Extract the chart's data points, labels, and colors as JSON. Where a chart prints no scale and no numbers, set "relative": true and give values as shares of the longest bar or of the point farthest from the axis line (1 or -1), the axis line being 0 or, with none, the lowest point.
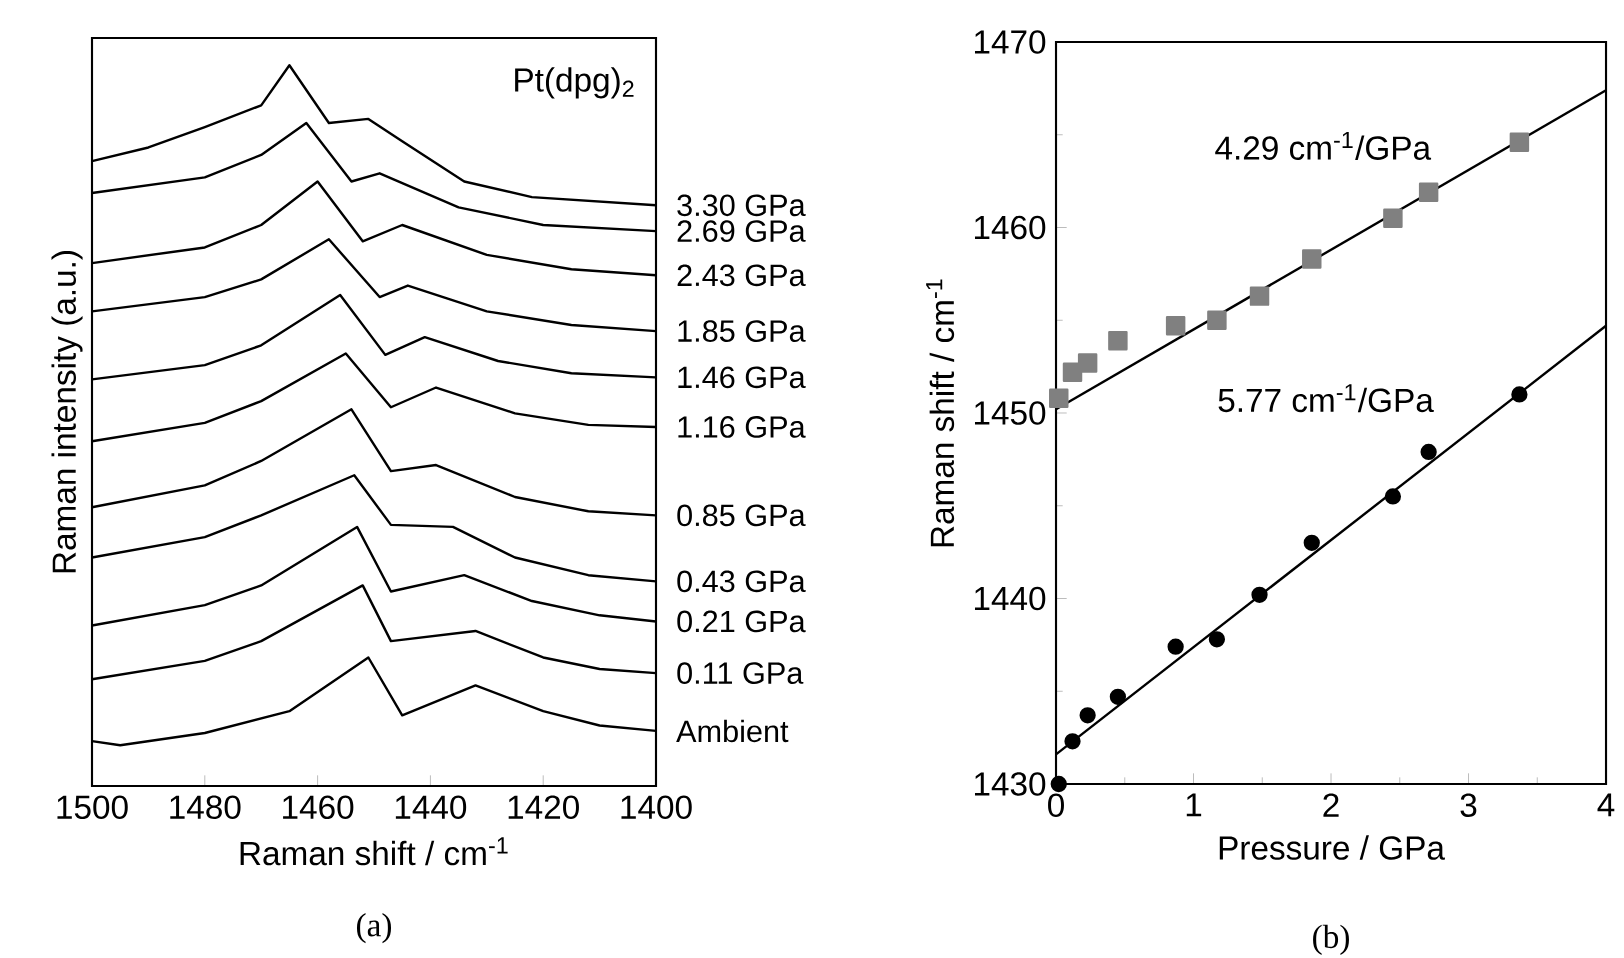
{
  "chart_data": [
    {
      "type": "line",
      "relative": true,
      "xlabel": "Raman shift / cm$^{-1}$",
      "ylabel": "Raman intensity (a.u.)",
      "xlim": [
        1500,
        1400
      ],
      "xticks": [
        1500,
        1480,
        1460,
        1440,
        1420,
        1400
      ],
      "annotations": [
        "Pt(dpg)$_{2}$",
        "(a)"
      ],
      "series": [
        {
          "name": "3.30 GPa",
          "color": "#000000",
          "x": [
            1500,
            1490,
            1480,
            1470,
            1465,
            1458,
            1451,
            1445,
            1434,
            1422,
            1400
          ],
          "values": [
            0.859,
            0.879,
            0.909,
            0.941,
            1,
            0.915,
            0.921,
            0.888,
            0.829,
            0.806,
            0.794
          ]
        },
        {
          "name": "2.69 GPa",
          "color": "#000000",
          "x": [
            1500,
            1480,
            1470,
            1462,
            1454,
            1449,
            1435,
            1420,
            1400
          ],
          "values": [
            0.812,
            0.835,
            0.868,
            0.915,
            0.829,
            0.841,
            0.791,
            0.765,
            0.756
          ]
        },
        {
          "name": "2.43 GPa",
          "color": "#000000",
          "x": [
            1500,
            1480,
            1470,
            1460,
            1452,
            1445,
            1430,
            1415,
            1400
          ],
          "values": [
            0.709,
            0.732,
            0.765,
            0.829,
            0.741,
            0.765,
            0.721,
            0.7,
            0.691
          ]
        },
        {
          "name": "1.85 GPa",
          "color": "#000000",
          "x": [
            1500,
            1480,
            1470,
            1458,
            1449,
            1444,
            1430,
            1415,
            1400
          ],
          "values": [
            0.638,
            0.659,
            0.685,
            0.744,
            0.659,
            0.676,
            0.638,
            0.618,
            0.609
          ]
        },
        {
          "name": "1.46 GPa",
          "color": "#000000",
          "x": [
            1500,
            1480,
            1470,
            1456,
            1448,
            1441,
            1428,
            1415,
            1400
          ],
          "values": [
            0.538,
            0.559,
            0.588,
            0.662,
            0.574,
            0.6,
            0.565,
            0.547,
            0.541
          ]
        },
        {
          "name": "1.16 GPa",
          "color": "#000000",
          "x": [
            1500,
            1480,
            1470,
            1455,
            1447,
            1439,
            1425,
            1412,
            1400
          ],
          "values": [
            0.447,
            0.474,
            0.506,
            0.576,
            0.497,
            0.526,
            0.488,
            0.471,
            0.468
          ]
        },
        {
          "name": "0.85 GPa",
          "color": "#000000",
          "x": [
            1500,
            1480,
            1470,
            1454,
            1447,
            1439,
            1425,
            1412,
            1400
          ],
          "values": [
            0.35,
            0.382,
            0.418,
            0.494,
            0.403,
            0.412,
            0.365,
            0.344,
            0.338
          ]
        },
        {
          "name": "0.43 GPa",
          "color": "#000000",
          "x": [
            1500,
            1480,
            1470,
            1453.5,
            1447,
            1436,
            1425,
            1412,
            1400
          ],
          "values": [
            0.276,
            0.306,
            0.338,
            0.397,
            0.324,
            0.321,
            0.276,
            0.25,
            0.241
          ]
        },
        {
          "name": "0.21 GPa",
          "color": "#000000",
          "x": [
            1500,
            1480,
            1470,
            1453,
            1447,
            1434,
            1422,
            1410,
            1400
          ],
          "values": [
            0.176,
            0.206,
            0.235,
            0.321,
            0.226,
            0.25,
            0.212,
            0.191,
            0.182
          ]
        },
        {
          "name": "0.11 GPa",
          "color": "#000000",
          "x": [
            1500,
            1480,
            1470,
            1452,
            1447,
            1432,
            1420,
            1410,
            1400
          ],
          "values": [
            0.097,
            0.124,
            0.153,
            0.235,
            0.153,
            0.168,
            0.129,
            0.112,
            0.106
          ]
        },
        {
          "name": "Ambient",
          "color": "#000000",
          "x": [
            1500,
            1495,
            1480,
            1465,
            1451,
            1445,
            1432,
            1420,
            1410,
            1400
          ],
          "values": [
            0.006,
            0,
            0.018,
            0.05,
            0.129,
            0.044,
            0.088,
            0.05,
            0.029,
            0.021
          ]
        }
      ]
    },
    {
      "type": "scatter",
      "xlabel": "Pressure / GPa",
      "ylabel": "Raman shift / cm$^{-1}$",
      "xlim": [
        0,
        4
      ],
      "ylim": [
        1430,
        1470
      ],
      "xticks": [
        0,
        {
          "value": 0.5,
          "label": null
        },
        1,
        {
          "value": 1.5,
          "label": null
        },
        2,
        {
          "value": 2.5,
          "label": null
        },
        3,
        {
          "value": 3.5,
          "label": null
        },
        4
      ],
      "yticks": [
        1430,
        {
          "value": 1435,
          "label": null
        },
        1440,
        {
          "value": 1445,
          "label": null
        },
        1450,
        {
          "value": 1455,
          "label": null
        },
        1460,
        {
          "value": 1465,
          "label": null
        },
        1470
      ],
      "annotations": [
        "4.29 cm$^{-1}$/GPa",
        "5.77 cm$^{-1}$/GPa",
        "(b)"
      ],
      "series": [
        {
          "color": "#808080",
          "marker": "square",
          "x": [
            0.02,
            0.12,
            0.23,
            0.45,
            0.87,
            1.17,
            1.48,
            1.86,
            2.45,
            2.71,
            3.37
          ],
          "values": [
            1450.8,
            1452.2,
            1452.7,
            1453.9,
            1454.7,
            1455.0,
            1456.3,
            1458.3,
            1460.5,
            1461.9,
            1464.6
          ]
        },
        {
          "color": "#000000",
          "marker": "circle",
          "x": [
            0.02,
            0.12,
            0.23,
            0.45,
            0.87,
            1.17,
            1.48,
            1.86,
            2.45,
            2.71,
            3.37
          ],
          "values": [
            1430.0,
            1432.3,
            1433.7,
            1434.7,
            1437.4,
            1437.8,
            1440.2,
            1443.0,
            1445.5,
            1447.9,
            1451.0
          ]
        },
        {
          "type": "line",
          "color": "#000000",
          "x": [
            0,
            4
          ],
          "values": [
            1450.2,
            1467.4
          ]
        },
        {
          "type": "line",
          "color": "#000000",
          "x": [
            0,
            4
          ],
          "values": [
            1431.6,
            1454.7
          ]
        }
      ]
    }
  ]
}
